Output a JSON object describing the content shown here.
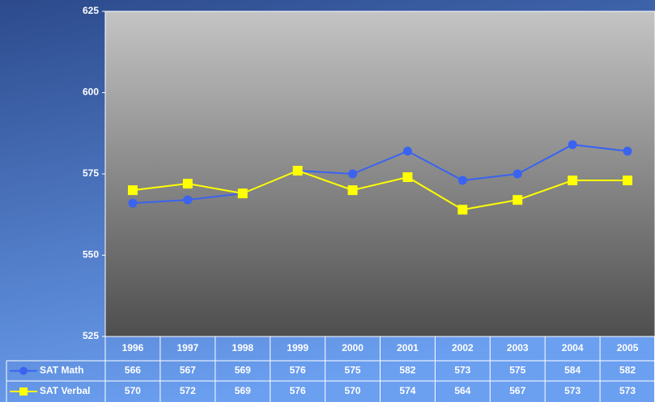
{
  "chart_data": {
    "type": "line",
    "categories": [
      "1996",
      "1997",
      "1998",
      "1999",
      "2000",
      "2001",
      "2002",
      "2003",
      "2004",
      "2005"
    ],
    "series": [
      {
        "name": "SAT Math",
        "color": "#3a63f0",
        "marker": "circle",
        "values": [
          566,
          567,
          569,
          576,
          575,
          582,
          573,
          575,
          584,
          582
        ]
      },
      {
        "name": "SAT Verbal",
        "color": "#ffff00",
        "marker": "square",
        "values": [
          570,
          572,
          569,
          576,
          570,
          574,
          564,
          567,
          573,
          573
        ]
      }
    ],
    "ylim": [
      525,
      625
    ],
    "yticks": [
      525,
      550,
      575,
      600,
      625
    ],
    "grid": false,
    "data_table": true
  }
}
